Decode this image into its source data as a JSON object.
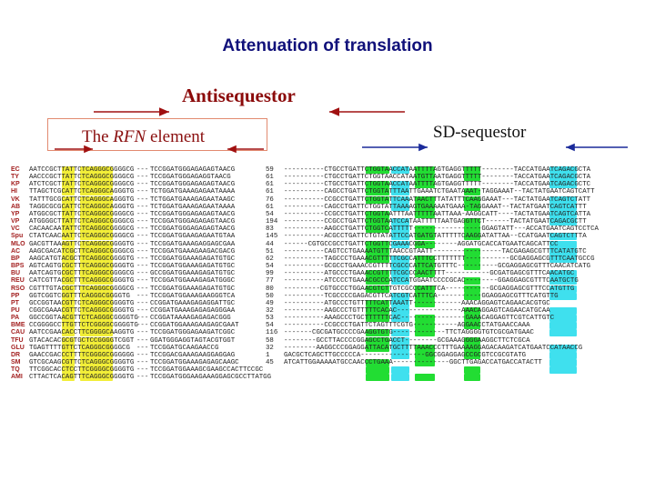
{
  "title": "Attenuation of translation",
  "antisequestor_label": "Antisequestor",
  "rfn_label_prefix": "The ",
  "rfn_label_italic": "RFN",
  "rfn_label_suffix": " element",
  "sd_label": "SD-sequestor",
  "colors": {
    "title": "#10107a",
    "antisequestor": "#8b0a0a",
    "rfn": "#8a0e0e",
    "arrow": "#a01010",
    "sd_arrow": "#1a2a9a",
    "species": "#a32020",
    "highlight_yellow": "#f2ee38",
    "highlight_green": "#22dd33",
    "highlight_cyan": "#3fe0ee"
  },
  "rows": [
    {
      "name": "EC",
      "s1": "AATCCGCTTATTCTCAGGGCGGGGCG",
      "d1": "---",
      "s2": "TCCGGATGGGAGAGAGTAACG",
      "num": "59",
      "s3": "----------CTGCCTGATTCTGGTAACCATAATTTTAGTGAGGTTTTT--------TACCATGAATCAGACGCTA"
    },
    {
      "name": "TY",
      "s1": "AACCCGCTTATTCTCAGGGCGGGGCG",
      "d1": "---",
      "s2": "TCCGGATGGGAGAGGTAACG",
      "num": "61",
      "s3": "----------CTGCCTGATTCTGGTAACCATAATGTTAATGAGGTTTTT--------TACCATGAATCAGACGCTA"
    },
    {
      "name": "KP",
      "s1": "ATCTCGCTTATTCTCAGGGCGGGGCG",
      "d1": "---",
      "s2": "TCCGGATGGGAGAGAGTAACG",
      "num": "61",
      "s3": "----------CTGCCTGATTCTGGTAACCATAATTTTAGTGAGGTTTTT--------TACCATGAATCAGACGCTC"
    },
    {
      "name": "HI",
      "s1": "TTAGCTCGCATTCTCAGGGCAGGGTG",
      "d1": "---",
      "s2": "TCTGGATGAAAGAGAATAAAA",
      "num": "61",
      "s3": "----------CAGCCTGATTCTGGTATTTAATTGAAATCTGAATAAAT-TAGGAAAT--TACTATGAATCAGTCATT"
    },
    {
      "name": "VK",
      "s1": "TATTTGCGCATTCTCAGGGCAGGGTG",
      "d1": "---",
      "s2": "TCTGGATGAAAGAGAATAAGC",
      "num": "76",
      "s3": "----------CCGCCTGATTCTGGTATTCAAATAACTTTATATTTCAAGGAAAT---TACTATGAATCAGTCTATT"
    },
    {
      "name": "AB",
      "s1": "TAGGCGCGCATTCTCAGGGCAGGGTG",
      "d1": "---",
      "s2": "TCTGGATGAAAGAGAATAAAA",
      "num": "61",
      "s3": "----------CAGCCTGATTCTGGTATTAAAAGTGAAAAATGAAA-TAGGAAAT--TACTATGAATCAGTCATTT"
    },
    {
      "name": "YP",
      "s1": "ATGGCGCTTATTCTCAGGGCGGGGCG",
      "d1": "---",
      "s2": "TCCGGATGGGAGAGAGTAACG",
      "num": "54",
      "s3": "----------CCGCCTGATTCTGGTAATTTAATTTTTAATTAAA-AAGGCATT----TACTATGAATCAGTCATTA"
    },
    {
      "name": "VP",
      "s1": "ATGGGGCTTATTCTCAGGGCGGGGCG",
      "d1": "---",
      "s2": "TCCGGATGGGAGAGAGTAACG",
      "num": "194",
      "s3": "----------CCGCCTGATTCTGGTAATCCATAATTTTTAATGAGGTTCT------TACTATGAATCAGACGCTT"
    },
    {
      "name": "VC",
      "s1": "CACAACAATATTCTCAGGGCGGGGCG",
      "d1": "---",
      "s2": "TCCGGATGGGAGAGAGTAACG",
      "num": "83",
      "s3": "----------AAGCCTGATTCTGGTCATTTTT-----------------GGAGTATT---ACCATGAATCAGTCCTCA"
    },
    {
      "name": "Spu",
      "s1": "CTATCAACAATTCTCAGGGCGGGGCG",
      "d1": "---",
      "s2": "TCCGGATGGAAGAGAATGTAA",
      "num": "145",
      "s3": "----------ACGCCTGATTCTGTATATTCCATGATGTATTTTTCAAGGATATTAA--CCATGAATCAGTCTTTA"
    },
    {
      "name": "MLO",
      "s1": "GACGTTAAAGTTCTCAGGGCGGGGTG",
      "d1": "---",
      "s2": "TCCGGATGAAAGAGGAGCGAA",
      "num": "44",
      "s3": "------CGTGCCGCCTGATTCTGGTTCGAAACGGA--------AGGATGCACCATGAATCAGCATTCC"
    },
    {
      "name": "AC",
      "s1": "AAGCGACATCGCTTCAGGGCGGGGCG",
      "d1": "---",
      "s2": "TCCGGATGAAAGAAGACGACG",
      "num": "51",
      "s3": "----------CAGTCCTGAAAATGTTTAACCGTAATT-----------------TACGAGAGCGTTTCATATGTC"
    },
    {
      "name": "BP",
      "s1": "AAGCATGTACGCTTCAGGGCGGGGTG",
      "d1": "---",
      "s2": "TCCGGATGGAAAGAGATGTGC",
      "num": "62",
      "s3": "----------TAGCCCTGAAACGTTTTTCGCCATTTCCTTTTTTT-----------GCGAGGAGCGTTTCAATGCCG"
    },
    {
      "name": "BPS",
      "s1": "AGTCAGTGCGCTTTCAGGGCGGGGTG",
      "d1": "---",
      "s2": "TCCGGATGGAAAGAGATGTGC",
      "num": "54",
      "s3": "----------GCGCCTGAAACCGTTTTCGCCCATTCATGTTTC----------GCGAGGAGCGTTTCAACATCATG"
    },
    {
      "name": "BU",
      "s1": "AATCAGTGCGCTTTCAGGGCGGGGCG",
      "d1": "---",
      "s2": "GCCGGATGGAAAGAGATGTGC",
      "num": "99",
      "s3": "----------ATGCCCTGAAACCGTTTTCGCCCAACTTTT-----------GCGATGAGCGTTTCAACATGC"
    },
    {
      "name": "REU",
      "s1": "CATCGTTACGCTTTCAGGGCGGGGTG",
      "d1": "---",
      "s2": "TCCGGATGGAAAGAGATGGGC",
      "num": "77",
      "s3": "----------ATCCCCTGAAACGCCCATCCATGGAATCCCCGCAC--------GGAGGAGCGTTTCAATGCTG"
    },
    {
      "name": "RSO",
      "s1": "CGTTTGTACGCTTTCAGGGCGGGGCG",
      "d1": "---",
      "s2": "TCCGGATGGAAAGAGATGTGC",
      "num": "80",
      "s3": "---------CGTGCCCTGGAACGTCTTGTCGCCCATTTCA-----------GCGAGGAGCGTTTCCATGTTG"
    },
    {
      "name": "PP",
      "s1": "GGTCGGTCGGTTTCAGGGCGGGGTG",
      "d1": "---",
      "s2": "TCCGGATGGAAAGAAGGGTCA",
      "num": "50",
      "s3": "----------TCGCCCCGAGACGTTCATCGTCATTTCA-----------GGAGGAGCGTTTCATGTTG"
    },
    {
      "name": "PT",
      "s1": "GCCGGTAACGTTCTCAGGGCGGGGTG",
      "d1": "---",
      "s2": "CCGGATGAAAGAGAGGATTGC",
      "num": "49",
      "s3": "----------ATGCCCTGTTTTTCATTAAATT------------AAACAGGAGTCAGAACACGTGC"
    },
    {
      "name": "PU",
      "s1": "CGGCGAAACGTTCTCAGGGCGGGGTG",
      "d1": "---",
      "s2": "CCGGATGAAAGAGAGAGGGAA",
      "num": "32",
      "s3": "----------AAGCCCTGTTTTTCACAC----------------AAACAGGAGTCAGAACATGCAA"
    },
    {
      "name": "PA",
      "s1": "GGCCGGTAACGTTCTCAGGGCGGGGTG",
      "d1": "---",
      "s2": "CCGGATAAAAGAGAGACGGG",
      "num": "53",
      "s3": "----------AAAGCCCTGCTTTTTTCAC----------------GAAACAGGAGTTCGTCATTGTC"
    },
    {
      "name": "BME",
      "s1": "CCGGGGCCTTGTTCTCGGGGCGGGGTG",
      "d1": "---",
      "s2": "CCGGATGGAAAGAAGAGCGAAT",
      "num": "54",
      "s3": "----------CCGCCCTGATTCTAGTTTCGTG-----------AGGAACCTATGAACCAAA"
    },
    {
      "name": "CAU",
      "s1": "AATCCGAACACCTTCGGGGCAAGGTG",
      "d1": "---",
      "s2": "TCCGGATGGGAGAAGATCGGC",
      "num": "116",
      "s3": "-------CGCGATGCCCCGAAGGTGTG-------------TTCTAGGGGTGTCGCGATGAAC"
    },
    {
      "name": "TFU",
      "s1": "GTACACACGCGTGCTCCGGGGTCGGT",
      "d1": "---",
      "s2": "GGATGGGAGGTAGTACGTGGT",
      "num": "58",
      "s3": "--------GCCTTACCCCGGAGCCTGACCT--------GCGAAAGGGGAAGGCTTCTCGCA"
    },
    {
      "name": "GLU",
      "s1": "TGAGTTTTGTTCTCAGGGCGGGGCG",
      "d1": "---",
      "s2": "TCCGGATGCAAGAACCG",
      "num": "32",
      "s3": "--------AAGGCCCGGAGGATTACATGCTTTTAAACCCTTTGAAAAGGAGACAAGATCATGAATCCATAACCG"
    },
    {
      "name": "DR",
      "s1": "GAACCGACCCTTTTCGGGGCGGGGGG",
      "d1": "---",
      "s2": "TCCGGACGAAAGAAGGAGGAG",
      "num": "1",
      "s3": "GACGCTCAGCTTGCCCCCA----------------GGCGGAGGAGCCGCGTCCGCGTATG"
    },
    {
      "name": "SM",
      "s1": "GTCGCAAGCGTTCTCAGGGCGGGGTG",
      "d1": "---",
      "s2": "TCCGGATGGAAAGAGAGCAAGC",
      "num": "45",
      "s3": "ATCATTGGAAAAATGCCAACCCTGAAA--------------GGCTTGAGACCATGACCATACTT"
    },
    {
      "name": "TQ",
      "s1": "TTCGGCACCTCCTTCGGGGCGGGGTG",
      "d1": "---",
      "s2": "TCCGGATGGAAAGCGAAGCCACTTCCGC",
      "num": "",
      "s3": ""
    },
    {
      "name": "AMI",
      "s1": "CTTACTCACAGTTTCAGGGCGGGGTG",
      "d1": "---",
      "s2": "TCCGGATGGGAAGAAAGGAGCGCCTTATGG",
      "num": "",
      "s3": ""
    }
  ]
}
